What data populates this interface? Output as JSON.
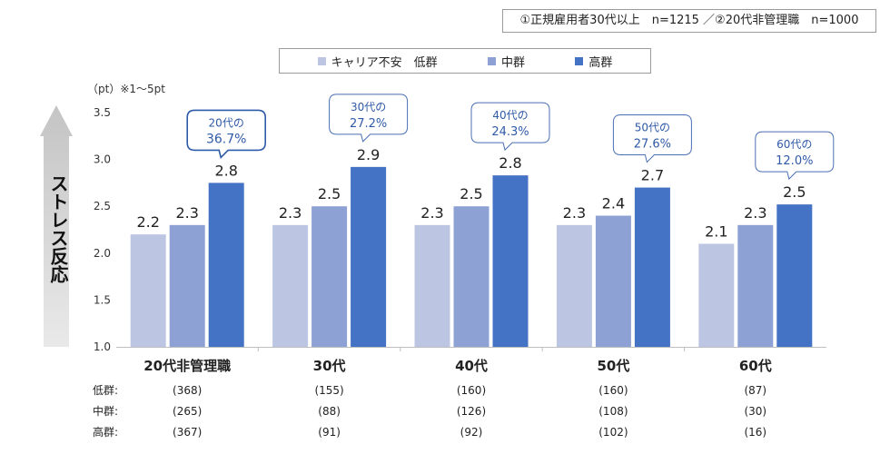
{
  "note": "①正規雇用者30代以上　n=1215 ／②20代非管理職　n=1000",
  "unit_label": "（pt）※1～5pt",
  "chart_data": {
    "type": "bar",
    "ylabel": "ストレス反応",
    "ylim": [
      1.0,
      3.5
    ],
    "yticks": [
      "1.0",
      "1.5",
      "2.0",
      "2.5",
      "3.0",
      "3.5"
    ],
    "legend_position": "top-center",
    "categories": [
      "20代非管理職",
      "30代",
      "40代",
      "50代",
      "60代"
    ],
    "series": [
      {
        "name": "キャリア不安　低群",
        "color": "#bcc6e3",
        "values": [
          2.2,
          2.3,
          2.3,
          2.3,
          2.1
        ],
        "labels": [
          "2.2",
          "2.3",
          "2.3",
          "2.3",
          "2.1"
        ],
        "counts": [
          "(368)",
          "(155)",
          "(160)",
          "(160)",
          "(87)"
        ]
      },
      {
        "name": "中群",
        "color": "#8ea1d5",
        "values": [
          2.3,
          2.5,
          2.5,
          2.4,
          2.3
        ],
        "labels": [
          "2.3",
          "2.5",
          "2.5",
          "2.4",
          "2.3"
        ],
        "counts": [
          "(265)",
          "(88)",
          "(126)",
          "(108)",
          "(30)"
        ]
      },
      {
        "name": "高群",
        "color": "#4472c4",
        "values": [
          2.75,
          2.92,
          2.83,
          2.7,
          2.52
        ],
        "labels": [
          "2.8",
          "2.9",
          "2.8",
          "2.7",
          "2.5"
        ],
        "counts": [
          "(367)",
          "(91)",
          "(92)",
          "(102)",
          "(16)"
        ]
      }
    ],
    "row_labels": [
      "低群:",
      "中群:",
      "高群:"
    ],
    "callouts": [
      {
        "line1": "20代の",
        "line2": "36.7%"
      },
      {
        "line1": "30代の",
        "line2": "27.2%"
      },
      {
        "line1": "40代の",
        "line2": "24.3%"
      },
      {
        "line1": "50代の",
        "line2": "27.6%"
      },
      {
        "line1": "60代の",
        "line2": "12.0%"
      }
    ]
  }
}
